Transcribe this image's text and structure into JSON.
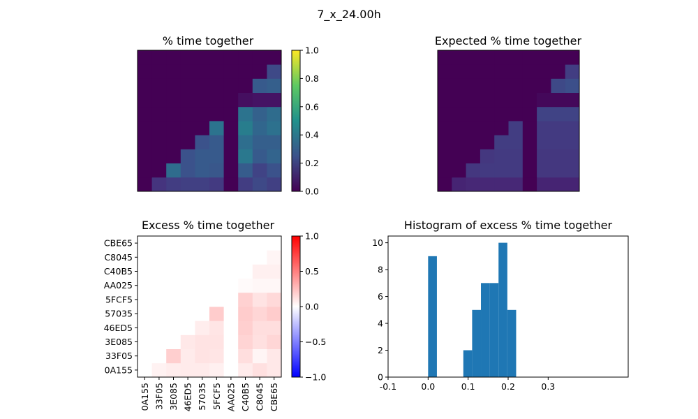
{
  "figure": {
    "suptitle": "7_x_24.00h"
  },
  "labels": [
    "0A155",
    "33F05",
    "3E085",
    "46ED5",
    "57035",
    "5FCF5",
    "AA025",
    "C40B5",
    "C8045",
    "CBE65"
  ],
  "chart_data": [
    {
      "type": "heatmap",
      "title": "% time together",
      "colormap": "viridis",
      "vmin": 0.0,
      "vmax": 1.0,
      "colorbar_ticks": [
        "0.0",
        "0.2",
        "0.4",
        "0.6",
        "0.8",
        "1.0"
      ],
      "note": "values[row][col]; row 0 = 0A155 (bottom), col 0 = 0A155 (left)",
      "values": [
        [
          0,
          0.15,
          0.18,
          0.19,
          0.19,
          0.17,
          0,
          0.18,
          0.22,
          0.19
        ],
        [
          0,
          0,
          0.35,
          0.25,
          0.28,
          0.27,
          0,
          0.29,
          0.2,
          0.25
        ],
        [
          0,
          0,
          0,
          0.25,
          0.28,
          0.28,
          0,
          0.4,
          0.28,
          0.32
        ],
        [
          0,
          0,
          0,
          0,
          0.25,
          0.28,
          0,
          0.36,
          0.3,
          0.3
        ],
        [
          0,
          0,
          0,
          0,
          0,
          0.38,
          0,
          0.42,
          0.33,
          0.37
        ],
        [
          0,
          0,
          0,
          0,
          0,
          0,
          0,
          0.38,
          0.31,
          0.35
        ],
        [
          0,
          0,
          0,
          0,
          0,
          0,
          0,
          0.04,
          0.05,
          0.05
        ],
        [
          0,
          0,
          0,
          0,
          0,
          0,
          0,
          0,
          0.28,
          0.3
        ],
        [
          0,
          0,
          0,
          0,
          0,
          0,
          0,
          0,
          0,
          0.22
        ],
        [
          0,
          0,
          0,
          0,
          0,
          0,
          0,
          0,
          0,
          0
        ]
      ]
    },
    {
      "type": "heatmap",
      "title": "Expected % time together",
      "colormap": "viridis",
      "vmin": 0.0,
      "vmax": 1.0,
      "values": [
        [
          0,
          0.1,
          0.11,
          0.11,
          0.11,
          0.11,
          0,
          0.1,
          0.1,
          0.1
        ],
        [
          0,
          0,
          0.16,
          0.17,
          0.17,
          0.17,
          0,
          0.16,
          0.16,
          0.16
        ],
        [
          0,
          0,
          0,
          0.16,
          0.17,
          0.17,
          0,
          0.16,
          0.16,
          0.16
        ],
        [
          0,
          0,
          0,
          0,
          0.18,
          0.18,
          0,
          0.17,
          0.17,
          0.17
        ],
        [
          0,
          0,
          0,
          0,
          0,
          0.18,
          0,
          0.17,
          0.17,
          0.17
        ],
        [
          0,
          0,
          0,
          0,
          0,
          0,
          0,
          0.2,
          0.2,
          0.2
        ],
        [
          0,
          0,
          0,
          0,
          0,
          0,
          0,
          0.02,
          0.02,
          0.02
        ],
        [
          0,
          0,
          0,
          0,
          0,
          0,
          0,
          0,
          0.22,
          0.24
        ],
        [
          0,
          0,
          0,
          0,
          0,
          0,
          0,
          0,
          0,
          0.18
        ],
        [
          0,
          0,
          0,
          0,
          0,
          0,
          0,
          0,
          0,
          0
        ]
      ]
    },
    {
      "type": "heatmap",
      "title": "Excess % time together",
      "colormap": "bwr",
      "vmin": -1.0,
      "vmax": 1.0,
      "colorbar_ticks": [
        "−1.0",
        "−0.5",
        "0.0",
        "0.5",
        "1.0"
      ],
      "values": [
        [
          0,
          0.05,
          0.07,
          0.08,
          0.08,
          0.06,
          0,
          0.08,
          0.12,
          0.09
        ],
        [
          0,
          0,
          0.19,
          0.08,
          0.11,
          0.1,
          0,
          0.13,
          0.04,
          0.09
        ],
        [
          0,
          0,
          0,
          0.09,
          0.11,
          0.11,
          0,
          0.17,
          0.12,
          0.16
        ],
        [
          0,
          0,
          0,
          0,
          0.07,
          0.1,
          0,
          0.19,
          0.13,
          0.13
        ],
        [
          0,
          0,
          0,
          0,
          0,
          0.2,
          0,
          0.2,
          0.16,
          0.2
        ],
        [
          0,
          0,
          0,
          0,
          0,
          0,
          0,
          0.18,
          0.11,
          0.15
        ],
        [
          0,
          0,
          0,
          0,
          0,
          0,
          0,
          0.02,
          0.03,
          0.03
        ],
        [
          0,
          0,
          0,
          0,
          0,
          0,
          0,
          0,
          0.06,
          0.06
        ],
        [
          0,
          0,
          0,
          0,
          0,
          0,
          0,
          0,
          0,
          0.04
        ],
        [
          0,
          0,
          0,
          0,
          0,
          0,
          0,
          0,
          0,
          0
        ]
      ]
    },
    {
      "type": "bar",
      "title": "Histogram of excess % time together",
      "color": "#1f77b4",
      "bins": [
        {
          "x0": 0.0,
          "x1": 0.022,
          "count": 9
        },
        {
          "x0": 0.088,
          "x1": 0.11,
          "count": 2
        },
        {
          "x0": 0.11,
          "x1": 0.132,
          "count": 5
        },
        {
          "x0": 0.132,
          "x1": 0.154,
          "count": 7
        },
        {
          "x0": 0.154,
          "x1": 0.176,
          "count": 7
        },
        {
          "x0": 0.176,
          "x1": 0.198,
          "count": 10
        },
        {
          "x0": 0.198,
          "x1": 0.22,
          "count": 5
        }
      ],
      "xlim": [
        -0.1,
        0.5
      ],
      "ylim": [
        0,
        10.5
      ],
      "xticks": [
        -0.1,
        0.0,
        0.1,
        0.2,
        0.3
      ],
      "xtick_labels": [
        "-0.1",
        "0.0",
        "0.1",
        "0.2",
        "0.3"
      ],
      "yticks": [
        0,
        2,
        4,
        6,
        8,
        10
      ],
      "ytick_labels": [
        "0",
        "2",
        "4",
        "6",
        "8",
        "10"
      ]
    }
  ]
}
